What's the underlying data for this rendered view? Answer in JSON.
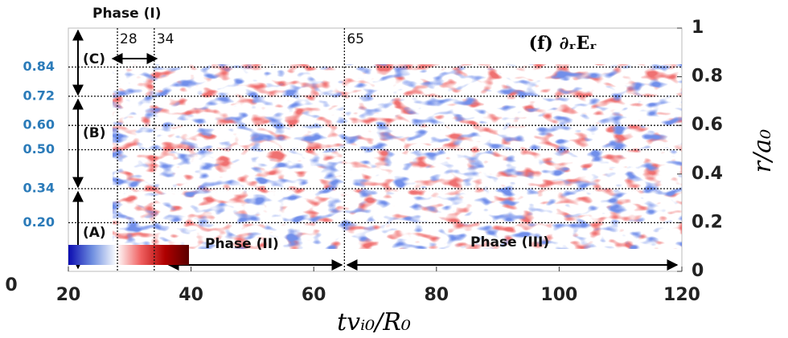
{
  "chart_data": {
    "type": "heatmap",
    "title": "(f) ∂ᵣEᵣ",
    "x_label": "tvᵢ₀/R₀",
    "y_label": "r/a₀",
    "xlim": [
      20,
      120
    ],
    "xticks": [
      20,
      40,
      60,
      80,
      100,
      120
    ],
    "ylim": [
      0,
      1
    ],
    "yticks": [
      0,
      0.2,
      0.4,
      0.6,
      0.8,
      1
    ],
    "left_ticks": [
      {
        "value": 0.2,
        "label": "0.20"
      },
      {
        "value": 0.34,
        "label": "0.34"
      },
      {
        "value": 0.5,
        "label": "0.50"
      },
      {
        "value": 0.6,
        "label": "0.60"
      },
      {
        "value": 0.72,
        "label": "0.72"
      },
      {
        "value": 0.84,
        "label": "0.84"
      }
    ],
    "origin_label": "0",
    "time_markers": [
      28,
      34,
      65
    ],
    "phases": [
      "Phase (I)",
      "Phase (II)",
      "Phase (III)"
    ],
    "regions": [
      "(A)",
      "(B)",
      "(C)"
    ],
    "colormap": [
      "#0a0ab0",
      "#6f8fe0",
      "#ffffff",
      "#f06060",
      "#b00000",
      "#5a0000"
    ]
  }
}
